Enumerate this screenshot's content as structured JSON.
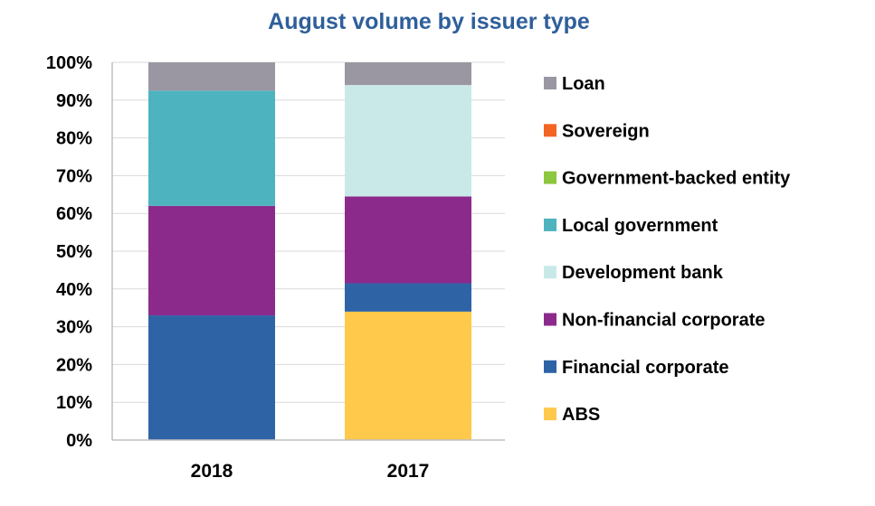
{
  "chart_data": {
    "type": "bar",
    "stacked": true,
    "title": "August volume by issuer type",
    "categories": [
      "2018",
      "2017"
    ],
    "y_ticks": [
      "0%",
      "10%",
      "20%",
      "30%",
      "40%",
      "50%",
      "60%",
      "70%",
      "80%",
      "90%",
      "100%"
    ],
    "ylim": [
      0,
      100
    ],
    "grid": true,
    "legend_position": "right",
    "series": [
      {
        "name": "ABS",
        "color": "#ffc94b",
        "values": [
          0,
          34
        ]
      },
      {
        "name": "Financial corporate",
        "color": "#2e64a6",
        "values": [
          33,
          7.5
        ]
      },
      {
        "name": "Non-financial corporate",
        "color": "#8c2a8c",
        "values": [
          29,
          23
        ]
      },
      {
        "name": "Development bank",
        "color": "#c9e9e8",
        "values": [
          0,
          29.5
        ]
      },
      {
        "name": "Local government",
        "color": "#4db3bf",
        "values": [
          30.5,
          0
        ]
      },
      {
        "name": "Government-backed entity",
        "color": "#8dc63f",
        "values": [
          0,
          0
        ]
      },
      {
        "name": "Sovereign",
        "color": "#f26522",
        "values": [
          0,
          0
        ]
      },
      {
        "name": "Loan",
        "color": "#9a97a2",
        "values": [
          7.5,
          6
        ]
      }
    ],
    "legend_order": [
      "Loan",
      "Sovereign",
      "Government-backed entity",
      "Local government",
      "Development bank",
      "Non-financial corporate",
      "Financial corporate",
      "ABS"
    ]
  }
}
